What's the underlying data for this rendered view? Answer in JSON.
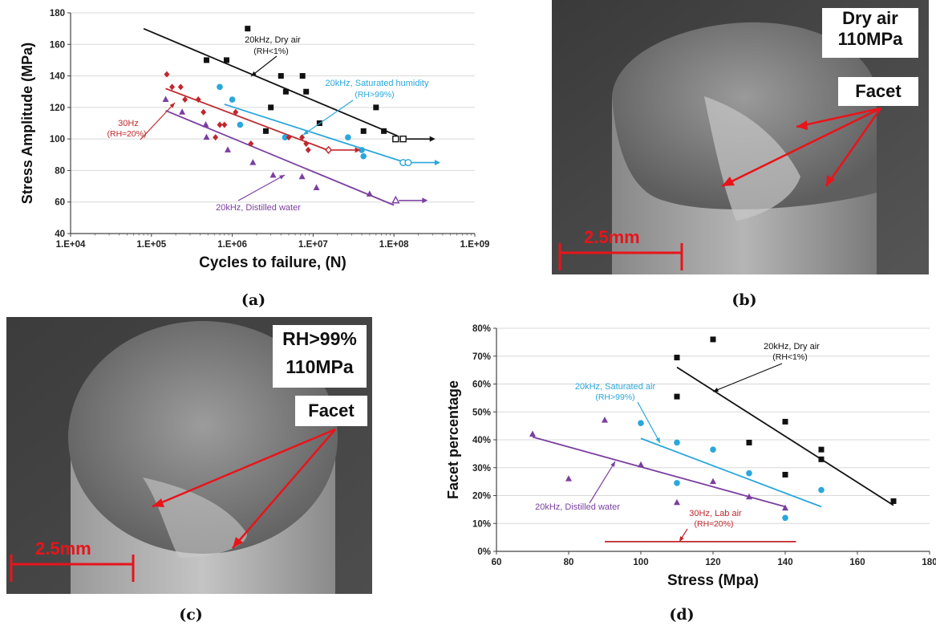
{
  "captions": {
    "a": "(a)",
    "b": "(b)",
    "c": "(c)",
    "d": "(d)"
  },
  "colors": {
    "dry": "#111111",
    "humid": "#2aa7dc",
    "lab": "#c0282d",
    "water": "#7b3fa0",
    "arrow": "#e8141a",
    "grid": "#d8d8d8"
  },
  "photos": {
    "b": {
      "label_line1": "Dry air",
      "label_line2": "110MPa",
      "facet": "Facet",
      "scale": "2.5mm"
    },
    "c": {
      "label_line1": "RH>99%",
      "label_line2": "110MPa",
      "facet": "Facet",
      "scale": "2.5mm"
    }
  },
  "chart_data": [
    {
      "type": "scatter",
      "panel": "a",
      "xscale": "log",
      "xlabel": "Cycles to failure, (N)",
      "ylabel": "Stress Amplitude (MPa)",
      "xlim": [
        10000,
        1000000000
      ],
      "ylim": [
        40,
        180
      ],
      "xticks": [
        "1.E+04",
        "1.E+05",
        "1.E+06",
        "1.E+07",
        "1.E+08",
        "1.E+09"
      ],
      "yticks": [
        40,
        60,
        80,
        100,
        120,
        140,
        160,
        180
      ],
      "grid": "horizontal",
      "series": [
        {
          "name": "20kHz, Dry air",
          "note": "(RH<1%)",
          "color_key": "dry",
          "marker": "square",
          "points": [
            [
              480000,
              150
            ],
            [
              850000,
              150
            ],
            [
              1550000,
              170
            ],
            [
              2600000,
              105
            ],
            [
              3000000,
              120
            ],
            [
              4000000,
              140
            ],
            [
              4600000,
              130
            ],
            [
              7400000,
              140
            ],
            [
              8200000,
              130
            ],
            [
              12000000,
              110
            ],
            [
              42000000,
              105
            ],
            [
              60000000,
              120
            ],
            [
              75000000,
              105
            ]
          ],
          "runouts": [
            [
              105000000,
              100
            ],
            [
              130000000,
              100
            ]
          ],
          "fit": [
            [
              80000,
              170
            ],
            [
              110000000,
              102
            ]
          ]
        },
        {
          "name": "20kHz, Saturated humidity",
          "note": "(RH>99%)",
          "color_key": "humid",
          "marker": "circle",
          "points": [
            [
              700000,
              133
            ],
            [
              1000000,
              125
            ],
            [
              1250000,
              109
            ],
            [
              4500000,
              101
            ],
            [
              27000000,
              101
            ],
            [
              40000000,
              93
            ],
            [
              42000000,
              89
            ]
          ],
          "runouts": [
            [
              130000000,
              85
            ],
            [
              150000000,
              85
            ]
          ],
          "fit": [
            [
              800000,
              122
            ],
            [
              140000000,
              85
            ]
          ]
        },
        {
          "name": "30Hz",
          "note": "(RH≈20%)",
          "color_key": "lab",
          "marker": "diamond",
          "points": [
            [
              155000,
              141
            ],
            [
              180000,
              133
            ],
            [
              230000,
              133
            ],
            [
              260000,
              125
            ],
            [
              380000,
              125
            ],
            [
              440000,
              117
            ],
            [
              620000,
              101
            ],
            [
              700000,
              109
            ],
            [
              800000,
              109
            ],
            [
              1100000,
              117
            ],
            [
              1700000,
              97
            ],
            [
              5000000,
              101
            ],
            [
              7300000,
              101
            ],
            [
              8200000,
              97
            ],
            [
              8700000,
              93
            ]
          ],
          "runouts": [
            [
              15500000,
              93
            ]
          ],
          "fit": [
            [
              150000,
              132
            ],
            [
              15000000,
              93
            ]
          ]
        },
        {
          "name": "20kHz, Distilled water",
          "note": "",
          "color_key": "water",
          "marker": "triangle",
          "points": [
            [
              150000,
              125
            ],
            [
              240000,
              117
            ],
            [
              480000,
              101
            ],
            [
              470000,
              109
            ],
            [
              880000,
              93
            ],
            [
              1800000,
              85
            ],
            [
              3200000,
              77
            ],
            [
              7300000,
              76
            ],
            [
              11000000,
              69
            ],
            [
              50000000,
              65
            ]
          ],
          "runouts": [
            [
              105000000,
              61
            ]
          ],
          "fit": [
            [
              150000,
              118
            ],
            [
              100000000,
              58
            ]
          ]
        }
      ]
    },
    {
      "type": "scatter",
      "panel": "d",
      "xlabel": "Stress (Mpa)",
      "ylabel": "Facet percentage",
      "xlim": [
        60,
        180
      ],
      "ylim": [
        0,
        80
      ],
      "xticks": [
        60,
        80,
        100,
        120,
        140,
        160,
        180
      ],
      "yticks": [
        "0%",
        "10%",
        "20%",
        "30%",
        "40%",
        "50%",
        "60%",
        "70%",
        "80%"
      ],
      "grid": "horizontal",
      "series": [
        {
          "name": "20kHz, Dry air",
          "note": "(RH<1%)",
          "color_key": "dry",
          "marker": "square",
          "points": [
            [
              110,
              69.5
            ],
            [
              110,
              55.5
            ],
            [
              120,
              76
            ],
            [
              130,
              39
            ],
            [
              140,
              46.5
            ],
            [
              140,
              27.5
            ],
            [
              150,
              36.5
            ],
            [
              150,
              33
            ],
            [
              170,
              18
            ]
          ],
          "fit": [
            [
              110,
              66
            ],
            [
              170,
              16.5
            ]
          ]
        },
        {
          "name": "20kHz, Saturated air",
          "note": "(RH>99%)",
          "color_key": "humid",
          "marker": "circle",
          "points": [
            [
              100,
              46
            ],
            [
              110,
              39
            ],
            [
              110,
              24.5
            ],
            [
              120,
              36.5
            ],
            [
              130,
              28
            ],
            [
              140,
              12
            ],
            [
              150,
              22
            ]
          ],
          "fit": [
            [
              100,
              40.5
            ],
            [
              150,
              16
            ]
          ]
        },
        {
          "name": "20kHz, Distilled water",
          "note": "",
          "color_key": "water",
          "marker": "triangle",
          "points": [
            [
              70,
              42
            ],
            [
              80,
              26
            ],
            [
              90,
              47
            ],
            [
              100,
              31
            ],
            [
              110,
              17.5
            ],
            [
              120,
              25
            ],
            [
              130,
              19.5
            ],
            [
              140,
              15.5
            ]
          ],
          "fit": [
            [
              70,
              41
            ],
            [
              140,
              16
            ]
          ]
        },
        {
          "name": "30Hz, Lab air",
          "note": "(RH≈20%)",
          "color_key": "lab",
          "marker": "none",
          "points": [],
          "fit": [
            [
              90,
              3.5
            ],
            [
              143,
              3.5
            ]
          ]
        }
      ]
    }
  ]
}
